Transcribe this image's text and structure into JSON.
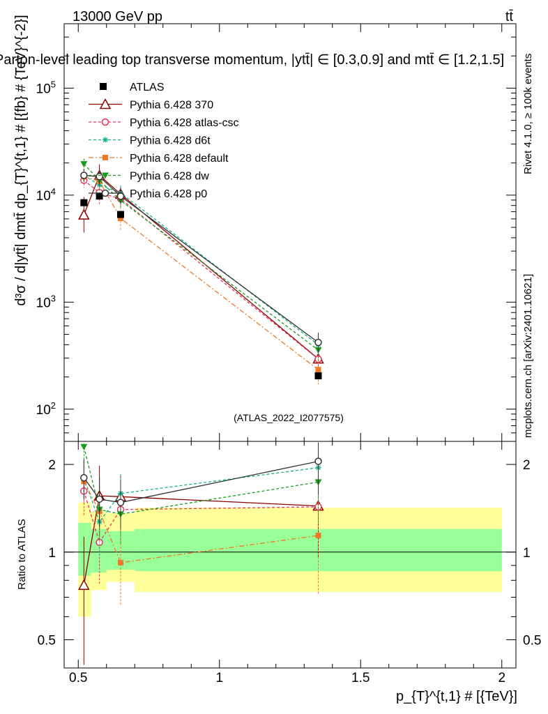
{
  "header": {
    "left": "13000 GeV pp",
    "right": "tt̄",
    "title": "Parton-level leading top transverse momentum, |ytt̄| ∈ [0.3,0.9] and mtt̄ ∈ [1.2,1.5]",
    "rivet": "Rivet 4.1.0, ≥ 100k events",
    "mcplots": "mcplots.cern.ch [arXiv:2401.10621]",
    "analysis": "(ATLAS_2022_I2077575)"
  },
  "chart_data": {
    "type": "scatter",
    "x": [
      0.52,
      0.575,
      0.65,
      1.35
    ],
    "x_edges": [
      0.5,
      0.545,
      0.6,
      0.7,
      2.0
    ],
    "xlabel": "p_{T}^{t,1} # [{TeV}]",
    "ylabel": "d³σ / d|ytt̄| dmtt̄ dp_{T}^{t,1} # [{fb} # {TeV}^{-2}]",
    "ratio_ylabel": "Ratio to ATLAS",
    "xlim": [
      0.45,
      2.05
    ],
    "ylim": [
      50,
      400000
    ],
    "ratio_ylim": [
      0.4,
      2.4
    ],
    "x_ticks": [
      "0.5",
      "1",
      "1.5",
      "2"
    ],
    "y_ticks": [
      "10^2",
      "10^3",
      "10^4",
      "10^5"
    ],
    "ratio_ticks": [
      "0.5",
      "1",
      "2"
    ],
    "data": {
      "name": "ATLAS",
      "values": [
        8500,
        9800,
        6600,
        205
      ],
      "band_inner": [
        [
          0.83,
          1.26
        ],
        [
          0.85,
          1.2
        ],
        [
          0.87,
          1.18
        ],
        [
          0.86,
          1.2
        ]
      ],
      "band_outer": [
        [
          0.6,
          1.48
        ],
        [
          0.74,
          1.38
        ],
        [
          0.79,
          1.36
        ],
        [
          0.73,
          1.42
        ]
      ]
    },
    "series": [
      {
        "name": "Pythia 6.428 370",
        "color": "#8b0000",
        "dash": "",
        "marker": "triangle-open",
        "ratio": [
          0.77,
          1.56,
          1.55,
          1.44
        ],
        "ratio_err": [
          0.36,
          0.42,
          0.28,
          0.48
        ]
      },
      {
        "name": "Pythia 6.428 atlas-csc",
        "color": "#e8305a",
        "dash": "4,3",
        "marker": "circle-open",
        "ratio": [
          1.62,
          1.08,
          1.4,
          1.43
        ],
        "ratio_err": [
          0.28,
          0.3,
          0.28,
          0.48
        ]
      },
      {
        "name": "Pythia 6.428 d6t",
        "color": "#10b090",
        "dash": "4,3",
        "marker": "asterisk",
        "ratio": [
          1.8,
          1.27,
          1.59,
          1.95
        ],
        "ratio_err": [
          0.28,
          0.3,
          0.28,
          0.48
        ]
      },
      {
        "name": "Pythia 6.428 default",
        "color": "#f07828",
        "dash": "7,3,2,3",
        "marker": "square",
        "ratio": [
          1.75,
          1.38,
          0.92,
          1.14
        ],
        "ratio_err": [
          0.28,
          0.3,
          0.26,
          0.42
        ]
      },
      {
        "name": "Pythia 6.428 dw",
        "color": "#1a9a1a",
        "dash": "4,3",
        "marker": "triangle-down",
        "ratio": [
          2.3,
          1.4,
          1.35,
          1.74
        ],
        "ratio_err": [
          0.28,
          0.3,
          0.28,
          0.48
        ]
      },
      {
        "name": "Pythia 6.428 p0",
        "color": "#333333",
        "dash": "",
        "marker": "circle-open",
        "ratio": [
          1.8,
          1.52,
          1.48,
          2.05
        ],
        "ratio_err": [
          0.28,
          0.3,
          0.28,
          0.48
        ]
      }
    ]
  }
}
